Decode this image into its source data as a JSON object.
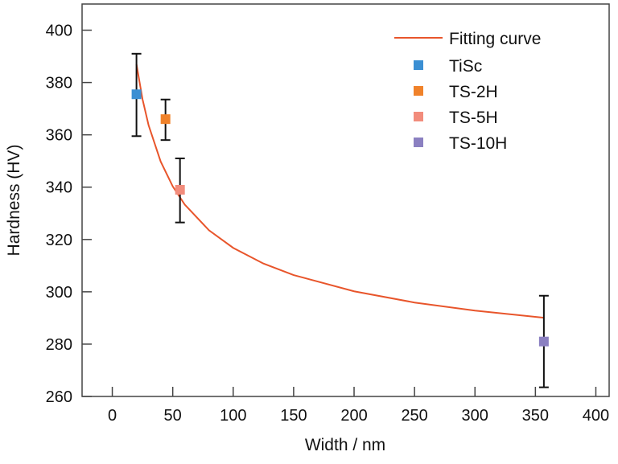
{
  "chart_data": {
    "type": "scatter",
    "title": "",
    "xlabel": "Width / nm",
    "ylabel": "Hardness (HV)",
    "xlim": [
      -25,
      411
    ],
    "ylim": [
      260,
      410
    ],
    "xticks": [
      0,
      50,
      100,
      150,
      200,
      250,
      300,
      350,
      400
    ],
    "yticks": [
      260,
      280,
      300,
      320,
      340,
      360,
      380,
      400
    ],
    "grid": false,
    "legend_position": "top-right",
    "series": [
      {
        "name": "TiSc",
        "color": "#3b8fd3",
        "x": [
          20
        ],
        "y": [
          375.5
        ],
        "err_low": [
          359.5
        ],
        "err_high": [
          391
        ]
      },
      {
        "name": "TS-2H",
        "color": "#f0822a",
        "x": [
          44
        ],
        "y": [
          366
        ],
        "err_low": [
          358
        ],
        "err_high": [
          373.5
        ]
      },
      {
        "name": "TS-5H",
        "color": "#f28c7c",
        "x": [
          56
        ],
        "y": [
          339
        ],
        "err_low": [
          326.5
        ],
        "err_high": [
          351
        ]
      },
      {
        "name": "TS-10H",
        "color": "#8b80c1",
        "x": [
          357
        ],
        "y": [
          281
        ],
        "err_low": [
          263.5
        ],
        "err_high": [
          298.5
        ]
      }
    ],
    "fit": {
      "name": "Fitting curve",
      "color": "#e8552b",
      "x": [
        20,
        25,
        30,
        40,
        50,
        60,
        80,
        100,
        125,
        150,
        200,
        250,
        300,
        357
      ],
      "y": [
        387.0,
        373.6,
        363.7,
        349.8,
        340.3,
        333.3,
        323.5,
        316.8,
        310.8,
        306.4,
        300.2,
        295.9,
        292.8,
        290.1
      ]
    }
  }
}
